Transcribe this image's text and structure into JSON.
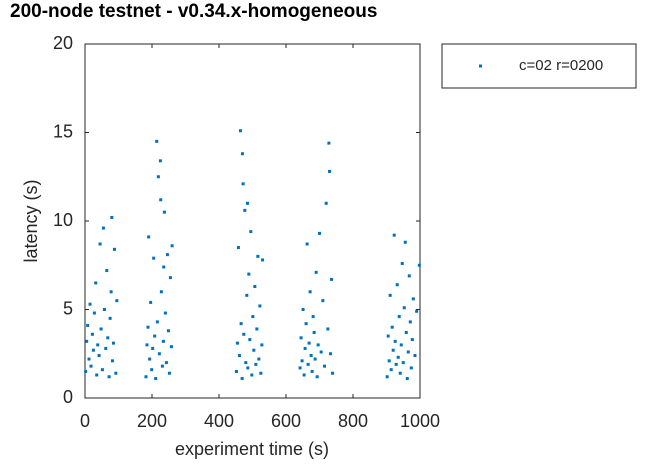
{
  "chart_data": {
    "type": "scatter",
    "title": "200-node testnet - v0.34.x-homogeneous",
    "x_label": "experiment time (s)",
    "y_label": "latency (s)",
    "xlim": [
      0,
      1000
    ],
    "xticks": [
      0,
      200,
      400,
      600,
      800,
      1000
    ],
    "ylim": [
      0,
      20
    ],
    "yticks": [
      0,
      5,
      10,
      15,
      20
    ],
    "grid": false,
    "legend": "outside-right",
    "series": [
      {
        "name": "c=02 r=0200",
        "color": "#0072bd",
        "x": [
          2,
          5,
          8,
          12,
          15,
          18,
          22,
          25,
          28,
          32,
          35,
          38,
          42,
          45,
          48,
          52,
          55,
          58,
          62,
          65,
          68,
          72,
          75,
          78,
          80,
          82,
          85,
          88,
          92,
          95,
          182,
          185,
          188,
          190,
          193,
          196,
          199,
          202,
          205,
          208,
          211,
          214,
          216,
          219,
          222,
          225,
          228,
          231,
          234,
          237,
          240,
          243,
          246,
          249,
          252,
          255,
          258,
          260,
          226,
          235,
          452,
          455,
          458,
          461,
          464,
          466,
          469,
          472,
          474,
          477,
          480,
          483,
          486,
          489,
          492,
          495,
          498,
          501,
          504,
          507,
          510,
          513,
          516,
          519,
          522,
          525,
          528,
          530,
          470,
          485,
          642,
          645,
          648,
          651,
          654,
          657,
          660,
          663,
          666,
          669,
          672,
          675,
          678,
          681,
          684,
          687,
          690,
          693,
          696,
          700,
          705,
          710,
          715,
          720,
          725,
          728,
          730,
          733,
          736,
          739,
          902,
          905,
          908,
          911,
          914,
          917,
          920,
          923,
          926,
          929,
          932,
          935,
          938,
          941,
          944,
          947,
          950,
          953,
          956,
          959,
          962,
          965,
          968,
          971,
          974,
          977,
          980,
          985,
          990,
          998
        ],
        "values": [
          1.5,
          3.2,
          4.1,
          2.2,
          5.3,
          1.8,
          3.6,
          2.7,
          4.8,
          6.5,
          1.3,
          3.0,
          2.4,
          8.7,
          3.9,
          1.6,
          9.6,
          5.0,
          2.8,
          7.2,
          3.4,
          1.2,
          4.5,
          6.0,
          10.2,
          2.1,
          3.1,
          8.4,
          1.4,
          5.5,
          1.2,
          3.0,
          4.0,
          9.1,
          2.2,
          5.4,
          1.6,
          2.8,
          7.9,
          3.5,
          1.1,
          14.5,
          4.3,
          12.5,
          2.5,
          13.4,
          6.0,
          1.8,
          3.2,
          10.5,
          4.8,
          2.0,
          8.1,
          3.8,
          1.4,
          6.8,
          2.9,
          8.6,
          11.2,
          7.4,
          1.5,
          3.1,
          8.5,
          2.4,
          15.1,
          4.2,
          1.1,
          12.1,
          3.6,
          10.6,
          2.0,
          5.8,
          1.7,
          7.0,
          3.3,
          9.4,
          1.3,
          4.6,
          2.7,
          6.3,
          1.9,
          3.9,
          8.0,
          2.2,
          5.2,
          1.4,
          3.0,
          7.8,
          13.8,
          11.0,
          1.7,
          3.4,
          2.1,
          5.0,
          1.3,
          2.8,
          4.2,
          8.7,
          1.9,
          3.1,
          6.0,
          2.4,
          1.5,
          4.6,
          3.7,
          2.2,
          7.1,
          1.2,
          3.0,
          9.3,
          2.6,
          5.5,
          1.8,
          11.0,
          3.9,
          14.4,
          12.8,
          2.5,
          6.7,
          1.4,
          1.2,
          3.5,
          2.1,
          5.8,
          1.6,
          4.0,
          2.7,
          9.2,
          3.2,
          1.9,
          6.4,
          2.3,
          4.6,
          1.4,
          3.0,
          7.6,
          2.0,
          5.1,
          8.8,
          3.7,
          1.1,
          2.6,
          6.9,
          4.3,
          1.7,
          3.3,
          5.6,
          2.4,
          4.9,
          7.5
        ]
      }
    ]
  }
}
